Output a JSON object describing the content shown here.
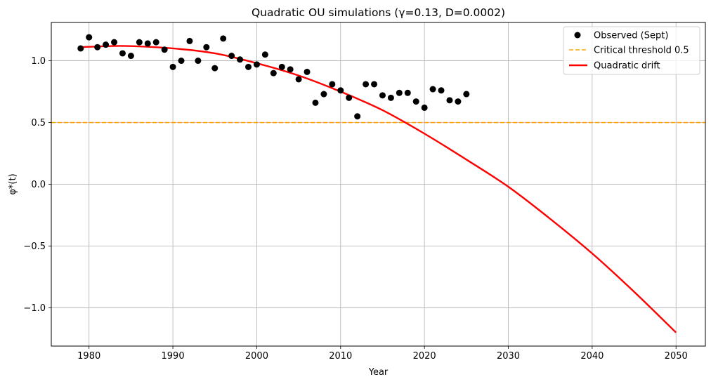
{
  "chart_data": {
    "type": "scatter",
    "title": "Quadratic OU simulations (γ=0.13, D=0.0002)",
    "xlabel": "Year",
    "ylabel": "φ*(t)",
    "xlim": [
      1975.5,
      2053.5
    ],
    "ylim": [
      -1.31,
      1.31
    ],
    "x_ticks": [
      1980,
      1990,
      2000,
      2010,
      2020,
      2030,
      2040,
      2050
    ],
    "y_ticks": [
      -1.0,
      -0.5,
      0.0,
      0.5,
      1.0
    ],
    "y_tick_labels": [
      "−1.0",
      "−0.5",
      "0.0",
      "0.5",
      "1.0"
    ],
    "grid": true,
    "legend_position": "top-right",
    "series": [
      {
        "name": "Observed (Sept)",
        "kind": "scatter",
        "color": "#000000",
        "x": [
          1979,
          1980,
          1981,
          1982,
          1983,
          1984,
          1985,
          1986,
          1987,
          1988,
          1989,
          1990,
          1991,
          1992,
          1993,
          1994,
          1995,
          1996,
          1997,
          1998,
          1999,
          2000,
          2001,
          2002,
          2003,
          2004,
          2005,
          2006,
          2007,
          2008,
          2009,
          2010,
          2011,
          2012,
          2013,
          2014,
          2015,
          2016,
          2017,
          2018,
          2019,
          2020,
          2021,
          2022,
          2023,
          2024,
          2025
        ],
        "y": [
          1.1,
          1.19,
          1.11,
          1.13,
          1.15,
          1.06,
          1.04,
          1.15,
          1.14,
          1.15,
          1.09,
          0.95,
          1.0,
          1.16,
          1.0,
          1.11,
          0.94,
          1.18,
          1.04,
          1.01,
          0.95,
          0.97,
          1.05,
          0.9,
          0.95,
          0.93,
          0.85,
          0.91,
          0.66,
          0.73,
          0.81,
          0.76,
          0.7,
          0.55,
          0.81,
          0.81,
          0.72,
          0.7,
          0.74,
          0.74,
          0.67,
          0.62,
          0.77,
          0.76,
          0.68,
          0.67,
          0.73
        ]
      },
      {
        "name": "Critical threshold 0.5",
        "kind": "hline",
        "color": "#ffa500",
        "y": 0.5
      },
      {
        "name": "Quadratic drift",
        "kind": "line",
        "color": "#ff0000",
        "x": [
          1979,
          1984,
          1990,
          1995,
          2000,
          2005,
          2010,
          2015,
          2020,
          2025,
          2030,
          2035,
          2040,
          2045,
          2050
        ],
        "y": [
          1.11,
          1.12,
          1.1,
          1.06,
          0.98,
          0.88,
          0.75,
          0.6,
          0.41,
          0.2,
          -0.02,
          -0.28,
          -0.56,
          -0.87,
          -1.2
        ]
      }
    ]
  }
}
